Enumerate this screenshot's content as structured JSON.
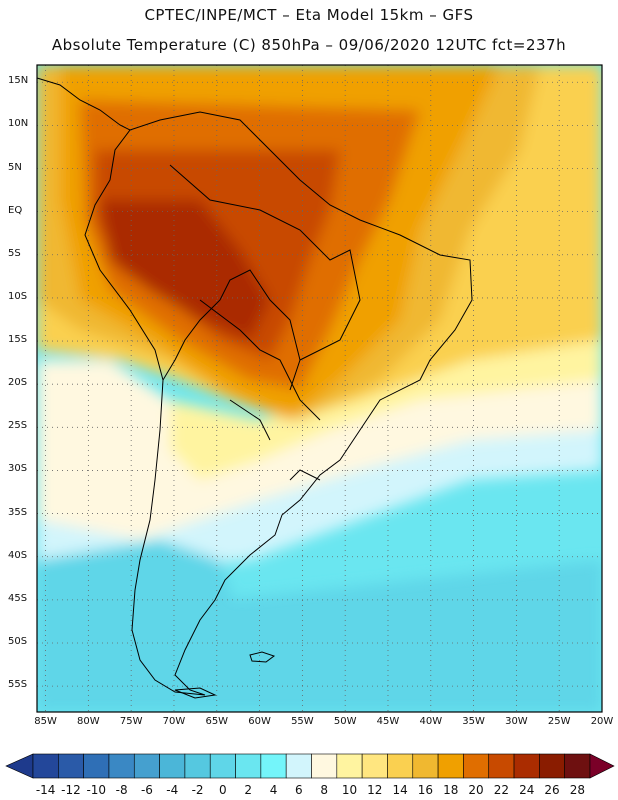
{
  "header": {
    "line1": "CPTEC/INPE/MCT –  Eta Model 15km – GFS",
    "line2": "Absolute Temperature (C) 850hPa – 09/06/2020 12UTC fct=237h"
  },
  "axes": {
    "lat_labels": [
      "15N",
      "10N",
      "5N",
      "EQ",
      "5S",
      "10S",
      "15S",
      "20S",
      "25S",
      "30S",
      "35S",
      "40S",
      "45S",
      "50S",
      "55S"
    ],
    "lat_values": [
      15,
      10,
      5,
      0,
      -5,
      -10,
      -15,
      -20,
      -25,
      -30,
      -35,
      -40,
      -45,
      -50,
      -55
    ],
    "lon_labels": [
      "85W",
      "80W",
      "75W",
      "70W",
      "65W",
      "60W",
      "55W",
      "50W",
      "45W",
      "40W",
      "35W",
      "30W",
      "25W",
      "20W"
    ],
    "lon_values": [
      -85,
      -80,
      -75,
      -70,
      -65,
      -60,
      -55,
      -50,
      -45,
      -40,
      -35,
      -30,
      -25,
      -20
    ],
    "lat_range": [
      -58,
      17
    ],
    "lon_range": [
      -86,
      -20
    ]
  },
  "colorbar": {
    "labels": [
      "-14",
      "-12",
      "-10",
      "-8",
      "-6",
      "-4",
      "-2",
      "0",
      "2",
      "4",
      "6",
      "8",
      "10",
      "12",
      "14",
      "16",
      "18",
      "20",
      "22",
      "24",
      "26",
      "28"
    ],
    "colors": [
      "#23479a",
      "#2a5aa8",
      "#2f6fb6",
      "#3a88c4",
      "#45a0cf",
      "#4bb6d8",
      "#55c8e0",
      "#5fd6e8",
      "#6ae6f0",
      "#74f5fa",
      "#d2f5fc",
      "#fff8e0",
      "#fff4a0",
      "#ffe680",
      "#fad050",
      "#f0b830",
      "#f0a000",
      "#e06e00",
      "#c84a00",
      "#aa2c00",
      "#8a1c00",
      "#6e1010"
    ],
    "arrow_left": "#1e3a8c",
    "arrow_right": "#7a0028"
  },
  "map_colors": {
    "ocean_cold": "#5fd6e8",
    "ocean_cool": "#6ae6f0",
    "south_cold": "#45a0cf",
    "pale_band": "#d2f5fc",
    "cream": "#fff8e0",
    "yellow": "#fff4a0",
    "gold": "#fad050",
    "amber": "#f0b830",
    "orange": "#f0a000",
    "dark_orange": "#e06e00",
    "rust": "#c84a00",
    "brown": "#aa2c00",
    "coast": "#000000",
    "grid": "#666666"
  }
}
